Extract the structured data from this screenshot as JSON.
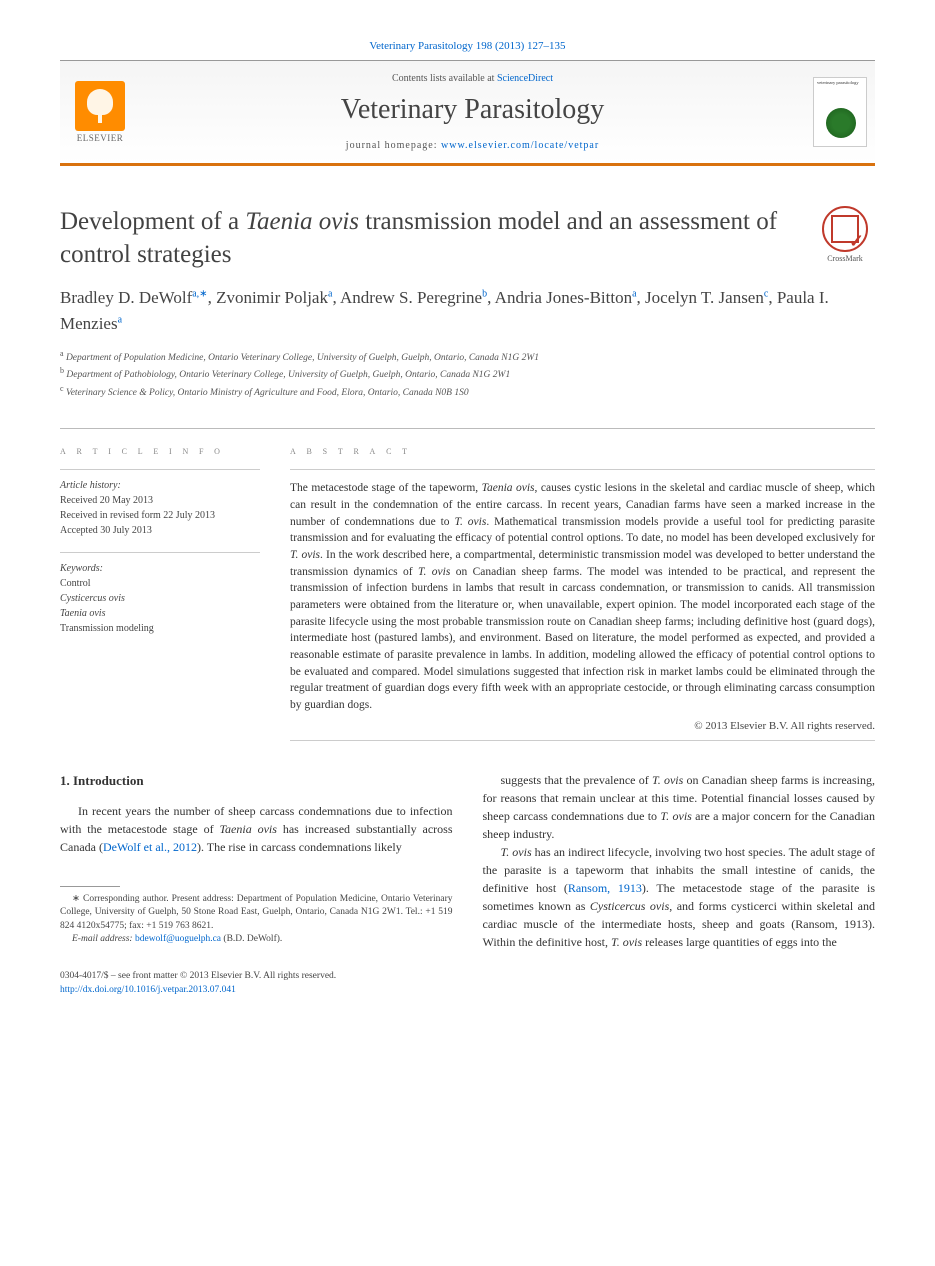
{
  "header": {
    "citation": "Veterinary Parasitology 198 (2013) 127–135",
    "contents_prefix": "Contents lists available at ",
    "contents_link": "ScienceDirect",
    "journal_title": "Veterinary Parasitology",
    "homepage_prefix": "journal homepage: ",
    "homepage_url": "www.elsevier.com/locate/vetpar",
    "publisher_name": "ELSEVIER",
    "cover_title": "veterinary parasitology"
  },
  "crossmark_label": "CrossMark",
  "article": {
    "title_pre": "Development of a ",
    "title_em": "Taenia ovis",
    "title_post": " transmission model and an assessment of control strategies",
    "authors_html": "Bradley D. DeWolf|a,∗|, Zvonimir Poljak|a|, Andrew S. Peregrine|b|, Andria Jones-Bitton|a|, Jocelyn T. Jansen|c|, Paula I. Menzies|a|",
    "affiliations": [
      "a|Department of Population Medicine, Ontario Veterinary College, University of Guelph, Guelph, Ontario, Canada N1G 2W1",
      "b|Department of Pathobiology, Ontario Veterinary College, University of Guelph, Guelph, Ontario, Canada N1G 2W1",
      "c|Veterinary Science & Policy, Ontario Ministry of Agriculture and Food, Elora, Ontario, Canada N0B 1S0"
    ]
  },
  "info": {
    "heading": "a r t i c l e   i n f o",
    "history_label": "Article history:",
    "received": "Received 20 May 2013",
    "revised": "Received in revised form 22 July 2013",
    "accepted": "Accepted 30 July 2013",
    "keywords_label": "Keywords:",
    "keywords": [
      "Control",
      "Cysticercus ovis",
      "Taenia ovis",
      "Transmission modeling"
    ]
  },
  "abstract": {
    "heading": "a b s t r a c t",
    "text": "The metacestode stage of the tapeworm, Taenia ovis, causes cystic lesions in the skeletal and cardiac muscle of sheep, which can result in the condemnation of the entire carcass. In recent years, Canadian farms have seen a marked increase in the number of condemnations due to T. ovis. Mathematical transmission models provide a useful tool for predicting parasite transmission and for evaluating the efficacy of potential control options. To date, no model has been developed exclusively for T. ovis. In the work described here, a compartmental, deterministic transmission model was developed to better understand the transmission dynamics of T. ovis on Canadian sheep farms. The model was intended to be practical, and represent the transmission of infection burdens in lambs that result in carcass condemnation, or transmission to canids. All transmission parameters were obtained from the literature or, when unavailable, expert opinion. The model incorporated each stage of the parasite lifecycle using the most probable transmission route on Canadian sheep farms; including definitive host (guard dogs), intermediate host (pastured lambs), and environment. Based on literature, the model performed as expected, and provided a reasonable estimate of parasite prevalence in lambs. In addition, modeling allowed the efficacy of potential control options to be evaluated and compared. Model simulations suggested that infection risk in market lambs could be eliminated through the regular treatment of guardian dogs every fifth week with an appropriate cestocide, or through eliminating carcass consumption by guardian dogs.",
    "copyright": "© 2013 Elsevier B.V. All rights reserved."
  },
  "intro": {
    "heading": "1.  Introduction",
    "para1": "In recent years the number of sheep carcass condemnations due to infection with the metacestode stage of Taenia ovis has increased substantially across Canada (DeWolf et al., 2012). The rise in carcass condemnations likely",
    "para1_link": "DeWolf et al., 2012",
    "para2": "suggests that the prevalence of T. ovis on Canadian sheep farms is increasing, for reasons that remain unclear at this time. Potential financial losses caused by sheep carcass condemnations due to T. ovis are a major concern for the Canadian sheep industry.",
    "para3": "T. ovis has an indirect lifecycle, involving two host species. The adult stage of the parasite is a tapeworm that inhabits the small intestine of canids, the definitive host (Ransom, 1913). The metacestode stage of the parasite is sometimes known as Cysticercus ovis, and forms cysticerci within skeletal and cardiac muscle of the intermediate hosts, sheep and goats (Ransom, 1913). Within the definitive host, T. ovis releases large quantities of eggs into the",
    "para3_link1": "Ransom, 1913",
    "para3_link2": "Ransom, 1913"
  },
  "footnotes": {
    "corr": "∗ Corresponding author. Present address: Department of Population Medicine, Ontario Veterinary College, University of Guelph, 50 Stone Road East, Guelph, Ontario, Canada N1G 2W1. Tel.: +1 519 824 4120x54775; fax: +1 519 763 8621.",
    "email_label": "E-mail address: ",
    "email": "bdewolf@uoguelph.ca",
    "email_name": " (B.D. DeWolf)."
  },
  "footer": {
    "issn": "0304-4017/$ – see front matter © 2013 Elsevier B.V. All rights reserved.",
    "doi": "http://dx.doi.org/10.1016/j.vetpar.2013.07.041"
  },
  "colors": {
    "link": "#0066cc",
    "accent_border": "#d9720e",
    "elsevier_orange": "#ff8c00",
    "text": "#333333"
  }
}
